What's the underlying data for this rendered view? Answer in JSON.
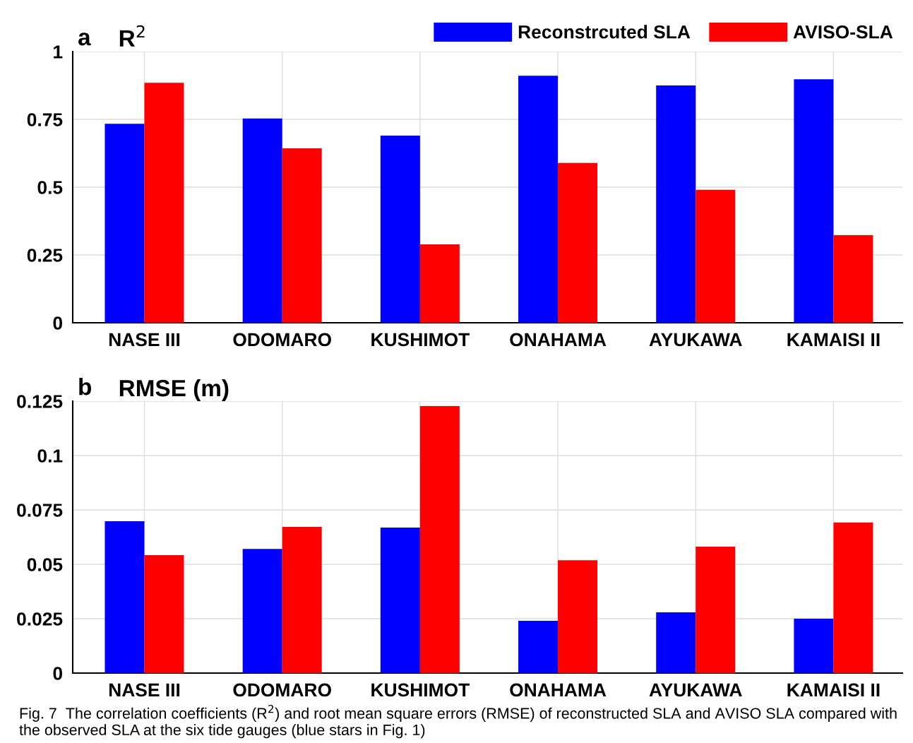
{
  "chart_data": [
    {
      "type": "bar",
      "title": "R$^{2}$",
      "annotations": [
        "a"
      ],
      "categories": [
        "NASE III",
        "ODOMARO",
        "KUSHIMOT",
        "ONAHAMA",
        "AYUKAWA",
        "KAMAISI II"
      ],
      "series": [
        {
          "name": "Reconstrcuted SLA",
          "color": "#0000ff",
          "values": [
            0.734,
            0.753,
            0.69,
            0.911,
            0.875,
            0.898
          ]
        },
        {
          "name": "AVISO-SLA",
          "color": "#ff0000",
          "values": [
            0.885,
            0.643,
            0.289,
            0.589,
            0.49,
            0.323
          ]
        }
      ],
      "ylim": [
        0,
        1
      ],
      "yticks": [
        0,
        0.25,
        0.5,
        0.75,
        1
      ],
      "grid": true,
      "legend": "top right"
    },
    {
      "type": "bar",
      "title": "RMSE (m)",
      "annotations": [
        "b",
        "Fig. 7  The correlation coefficients (R$^{2}$) and root mean square errors (RMSE) of reconstructed SLA and AVISO SLA compared with the observed SLA at the six tide gauges (blue stars in Fig. 1)"
      ],
      "categories": [
        "NASE III",
        "ODOMARO",
        "KUSHIMOT",
        "ONAHAMA",
        "AYUKAWA",
        "KAMAISI II"
      ],
      "series": [
        {
          "color": "#0000ff",
          "values": [
            0.0698,
            0.0571,
            0.0669,
            0.024,
            0.0279,
            0.025
          ]
        },
        {
          "color": "#ff0000",
          "values": [
            0.0542,
            0.0672,
            0.1227,
            0.0519,
            0.0581,
            0.0692
          ]
        }
      ],
      "ylim": [
        0,
        0.125
      ],
      "yticks": [
        0,
        0.025,
        0.05,
        0.075,
        0.1,
        0.125
      ],
      "grid": true,
      "legend": false
    }
  ]
}
